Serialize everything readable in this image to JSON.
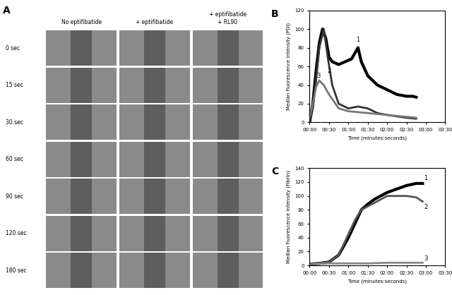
{
  "panel_labels": [
    "A",
    "B",
    "C"
  ],
  "image_grid": {
    "columns": [
      "No eptifibatide",
      "+ eptifibatide",
      "+ eptifibatide\n+ RL90"
    ],
    "rows": [
      "0 sec",
      "15 sec",
      "30 sec",
      "60 sec",
      "90 sec",
      "120 sec",
      "180 sec"
    ]
  },
  "chart_data": [
    {
      "type": "line",
      "ylabel": "Median fluorescence intensity (PDI)",
      "xlabel": "Time (minutes:seconds)",
      "xlim": [
        0,
        210
      ],
      "ylim": [
        0,
        120
      ],
      "xticks": [
        {
          "value": 0,
          "label": "00:00"
        },
        {
          "value": 30,
          "label": "00:30"
        },
        {
          "value": 60,
          "label": "01:00"
        },
        {
          "value": 90,
          "label": "01:30"
        },
        {
          "value": 120,
          "label": "02:00"
        },
        {
          "value": 150,
          "label": "02:30"
        },
        {
          "value": 180,
          "label": "03:00"
        },
        {
          "value": 210,
          "label": "03:30"
        }
      ],
      "yticks": [
        0,
        20,
        40,
        60,
        80,
        100,
        120
      ],
      "series": [
        {
          "name": "1",
          "color": "#000000",
          "x": [
            0,
            5,
            10,
            15,
            20,
            25,
            30,
            35,
            45,
            55,
            65,
            75,
            80,
            90,
            105,
            120,
            135,
            150,
            160,
            165
          ],
          "values": [
            0,
            20,
            55,
            85,
            100,
            90,
            70,
            65,
            62,
            65,
            68,
            80,
            65,
            50,
            40,
            35,
            30,
            28,
            28,
            27
          ]
        },
        {
          "name": "2",
          "color": "#333333",
          "x": [
            0,
            5,
            10,
            15,
            22,
            28,
            35,
            45,
            60,
            75,
            90,
            105,
            120,
            150,
            165
          ],
          "values": [
            0,
            15,
            45,
            80,
            100,
            70,
            40,
            20,
            15,
            17,
            15,
            10,
            8,
            5,
            4
          ]
        },
        {
          "name": "3",
          "color": "#777777",
          "x": [
            0,
            5,
            10,
            15,
            22,
            30,
            38,
            45,
            60,
            90,
            120,
            150,
            165
          ],
          "values": [
            5,
            20,
            38,
            45,
            40,
            30,
            22,
            15,
            12,
            10,
            8,
            6,
            5
          ]
        }
      ],
      "annotations": [
        {
          "text": "1",
          "x": 75,
          "y": 88
        },
        {
          "text": "2",
          "x": 30,
          "y": 55
        },
        {
          "text": "3",
          "x": 14,
          "y": 50
        }
      ]
    },
    {
      "type": "line",
      "ylabel": "Median fluorescence intensity (Fibrin)",
      "xlabel": "Time (minutes:seconds)",
      "xlim": [
        0,
        210
      ],
      "ylim": [
        0,
        140
      ],
      "xticks": [
        {
          "value": 0,
          "label": "00:00"
        },
        {
          "value": 30,
          "label": "00:30"
        },
        {
          "value": 60,
          "label": "01:00"
        },
        {
          "value": 90,
          "label": "01:30"
        },
        {
          "value": 120,
          "label": "02:00"
        },
        {
          "value": 150,
          "label": "02:30"
        },
        {
          "value": 180,
          "label": "03:00"
        },
        {
          "value": 210,
          "label": "03:30"
        }
      ],
      "yticks": [
        0,
        20,
        40,
        60,
        80,
        100,
        120,
        140
      ],
      "series": [
        {
          "name": "1",
          "color": "#000000",
          "x": [
            0,
            15,
            30,
            45,
            60,
            70,
            80,
            90,
            100,
            120,
            135,
            150,
            165,
            175
          ],
          "values": [
            2,
            3,
            5,
            15,
            40,
            60,
            80,
            88,
            95,
            105,
            110,
            115,
            118,
            118
          ]
        },
        {
          "name": "2",
          "color": "#555555",
          "x": [
            0,
            15,
            30,
            45,
            60,
            70,
            80,
            90,
            100,
            120,
            135,
            150,
            165,
            175
          ],
          "values": [
            2,
            3,
            5,
            15,
            45,
            65,
            80,
            85,
            90,
            100,
            100,
            100,
            98,
            92
          ]
        },
        {
          "name": "3",
          "color": "#888888",
          "x": [
            0,
            30,
            60,
            90,
            120,
            150,
            175
          ],
          "values": [
            2,
            3,
            3,
            3,
            4,
            4,
            4
          ]
        }
      ],
      "annotations": [
        {
          "text": "1",
          "x": 180,
          "y": 126
        },
        {
          "text": "2",
          "x": 180,
          "y": 84
        },
        {
          "text": "3",
          "x": 180,
          "y": 10
        }
      ]
    }
  ]
}
